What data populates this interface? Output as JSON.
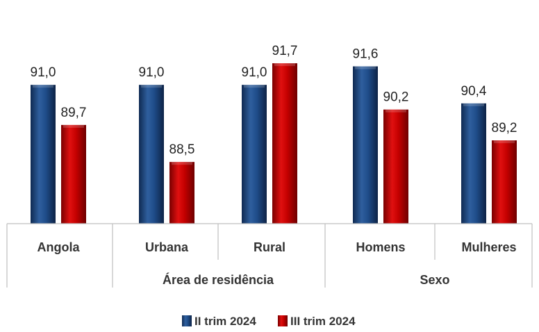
{
  "chart_data": {
    "type": "bar",
    "categories": [
      "Angola",
      "Urbana",
      "Rural",
      "Homens",
      "Mulheres"
    ],
    "groups": [
      {
        "label": "",
        "categories": [
          "Angola"
        ]
      },
      {
        "label": "Área de residência",
        "categories": [
          "Urbana",
          "Rural"
        ]
      },
      {
        "label": "Sexo",
        "categories": [
          "Homens",
          "Mulheres"
        ]
      }
    ],
    "series": [
      {
        "name": "II trim 2024",
        "color": "#1f497d",
        "values": [
          91.0,
          91.0,
          91.0,
          91.6,
          90.4
        ],
        "labels": [
          "91,0",
          "91,0",
          "91,0",
          "91,6",
          "90,4"
        ]
      },
      {
        "name": "III trim 2024",
        "color": "#c00000",
        "values": [
          89.7,
          88.5,
          91.7,
          90.2,
          89.2
        ],
        "labels": [
          "89,7",
          "88,5",
          "91,7",
          "90,2",
          "89,2"
        ]
      }
    ],
    "title": "",
    "xlabel": "",
    "ylabel": "",
    "ylim": [
      86.5,
      92.4
    ],
    "grid": false,
    "legend_position": "bottom"
  }
}
